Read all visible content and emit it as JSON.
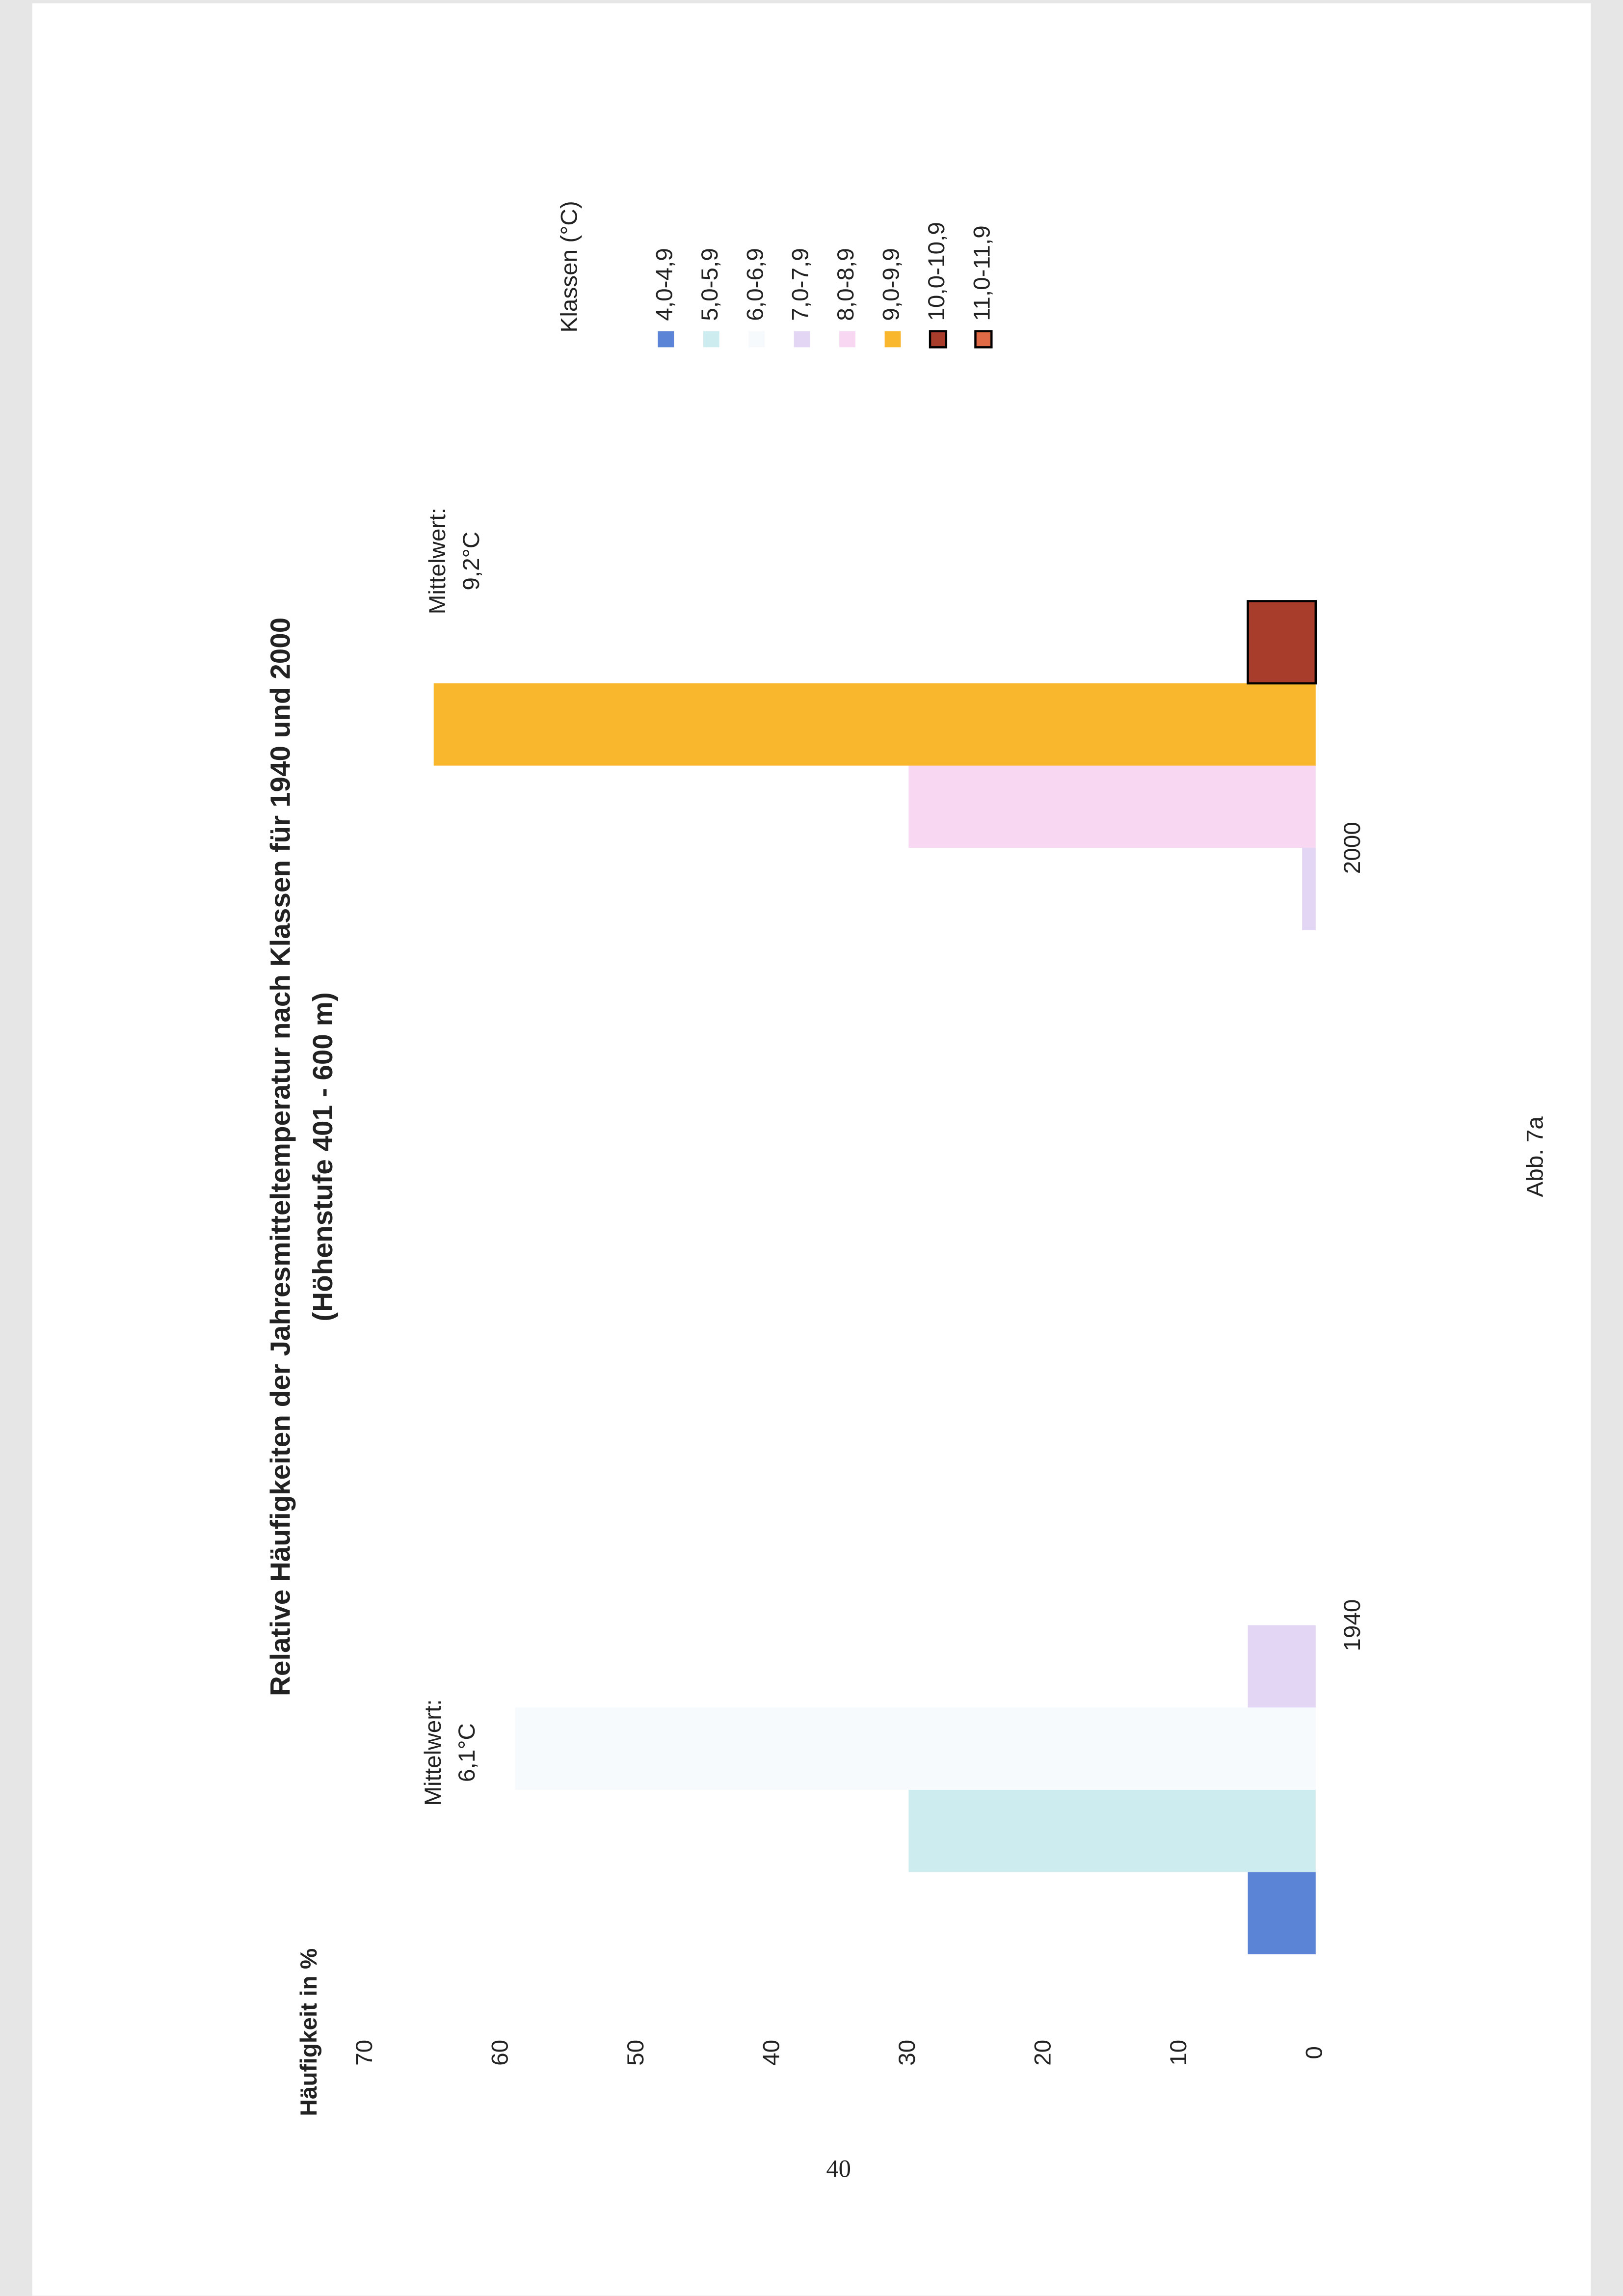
{
  "chart_data": {
    "type": "bar",
    "title": "Relative Häufigkeiten der Jahresmitteltemperatur nach Klassen für 1940 und 2000",
    "subtitle": "(Höhenstufe 401 - 600 m)",
    "y_label": "Häufigkeit in %",
    "categories": [
      "1940",
      "2000"
    ],
    "legend_title": "Klassen (°C)",
    "series": [
      {
        "name": "4,0-4,9",
        "color": "#5b84d6",
        "values": [
          5,
          0
        ]
      },
      {
        "name": "5,0-5,9",
        "color": "#cdecef",
        "values": [
          30,
          0
        ]
      },
      {
        "name": "6,0-6,9",
        "color": "#f6fafd",
        "values": [
          59,
          0
        ]
      },
      {
        "name": "7,0-7,9",
        "color": "#e3d6f4",
        "values": [
          5,
          1
        ]
      },
      {
        "name": "8,0-8,9",
        "color": "#f8d7f3",
        "values": [
          0,
          30
        ]
      },
      {
        "name": "9,0-9,9",
        "color": "#f8b72c",
        "values": [
          0,
          65
        ]
      },
      {
        "name": "10,0-10,9",
        "color": "#a83d2c",
        "edgecolor": "#000000",
        "values": [
          0,
          5
        ]
      },
      {
        "name": "11,0-11,9",
        "color": "#e06a45",
        "edgecolor": "#000000",
        "values": [
          0,
          0
        ]
      }
    ],
    "annotations": [
      [
        "Mittelwert:",
        "6,1°C"
      ],
      [
        "Mittelwert:",
        "9,2°C"
      ]
    ],
    "ylim": [
      0,
      70
    ],
    "yticks": [
      0,
      10,
      20,
      30,
      40,
      50,
      60,
      70
    ],
    "grid": false
  },
  "figure_label": "Abb. 7a",
  "page_number": "40"
}
